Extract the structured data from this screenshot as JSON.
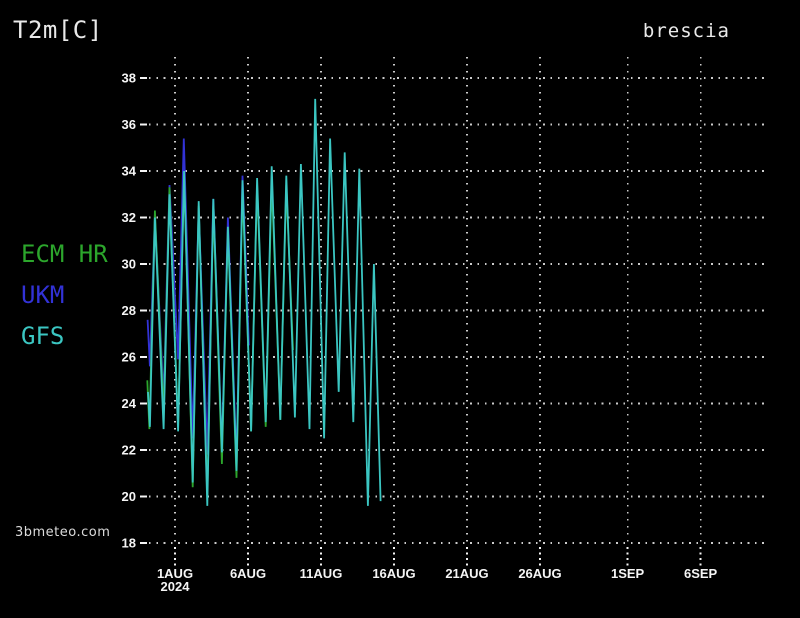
{
  "header": {
    "title": "T2m[C]",
    "station": "brescia"
  },
  "watermark": "3bmeteo.com",
  "colors": {
    "background": "#000000",
    "grid": "#cccccc",
    "axis_text": "#f5f5f5",
    "title_text": "#e9e9e9",
    "ecm_green": "#2ca62c",
    "ukm_blue": "#3232d6",
    "gfs_cyan": "#3bc6c2"
  },
  "legend": [
    {
      "label": "ECM HR",
      "color_key": "ecm_green"
    },
    {
      "label": "UKM",
      "color_key": "ukm_blue"
    },
    {
      "label": "GFS",
      "color_key": "gfs_cyan"
    }
  ],
  "chart_data": {
    "type": "line",
    "title": "T2m[C]",
    "location": "brescia",
    "grid": true,
    "legend_position": "left",
    "ylabel": "T2m [C]",
    "y_axis": {
      "min": 18,
      "max": 38,
      "step": 2,
      "ticks": [
        38,
        36,
        34,
        32,
        30,
        28,
        26,
        24,
        22,
        20,
        18
      ]
    },
    "x_axis": {
      "unit": "days relative to 1AUG tick",
      "ticks": [
        {
          "label": "1AUG",
          "sublabel": "2024",
          "t": 0
        },
        {
          "label": "6AUG",
          "t": 5
        },
        {
          "label": "11AUG",
          "t": 10
        },
        {
          "label": "16AUG",
          "t": 15
        },
        {
          "label": "21AUG",
          "t": 20
        },
        {
          "label": "26AUG",
          "t": 25
        },
        {
          "label": "1SEP",
          "t": 31
        },
        {
          "label": "6SEP",
          "t": 36
        }
      ]
    },
    "series": [
      {
        "name": "ECM HR",
        "color_key": "ecm_green",
        "points": [
          [
            -1.9,
            25.0
          ],
          [
            -1.75,
            22.9
          ],
          [
            -1.38,
            32.3
          ],
          [
            -0.78,
            23.5
          ],
          [
            -0.38,
            33.3
          ],
          [
            0.21,
            23.0
          ],
          [
            0.62,
            33.8
          ],
          [
            1.21,
            20.4
          ],
          [
            1.62,
            32.5
          ],
          [
            2.21,
            20.0
          ],
          [
            2.62,
            32.5
          ],
          [
            3.21,
            21.4
          ],
          [
            3.62,
            31.5
          ],
          [
            4.21,
            20.8
          ],
          [
            4.62,
            33.2
          ],
          [
            5.21,
            22.8
          ],
          [
            5.62,
            33.4
          ],
          [
            6.21,
            23.0
          ],
          [
            6.62,
            33.6
          ],
          [
            7.21,
            23.3
          ],
          [
            7.62,
            33.4
          ],
          [
            8.08,
            26.3
          ]
        ]
      },
      {
        "name": "UKM",
        "color_key": "ukm_blue",
        "points": [
          [
            -1.88,
            27.6
          ],
          [
            -1.72,
            25.6
          ],
          [
            -1.38,
            32.1
          ],
          [
            -0.78,
            24.2
          ],
          [
            -0.38,
            33.4
          ],
          [
            0.21,
            25.9
          ],
          [
            0.6,
            35.4
          ],
          [
            1.21,
            22.5
          ],
          [
            1.62,
            32.4
          ],
          [
            2.21,
            21.8
          ],
          [
            2.62,
            32.8
          ],
          [
            3.21,
            22.0
          ],
          [
            3.62,
            32.0
          ],
          [
            4.21,
            21.5
          ],
          [
            4.62,
            33.8
          ],
          [
            5.06,
            26.5
          ]
        ]
      },
      {
        "name": "GFS",
        "color_key": "gfs_cyan",
        "points": [
          [
            -1.85,
            24.5
          ],
          [
            -1.72,
            23.0
          ],
          [
            -1.38,
            32.0
          ],
          [
            -0.78,
            22.9
          ],
          [
            -0.38,
            33.0
          ],
          [
            0.21,
            22.8
          ],
          [
            0.62,
            34.0
          ],
          [
            1.21,
            20.6
          ],
          [
            1.62,
            32.7
          ],
          [
            2.21,
            19.6
          ],
          [
            2.62,
            32.8
          ],
          [
            3.21,
            21.9
          ],
          [
            3.62,
            31.6
          ],
          [
            4.21,
            21.1
          ],
          [
            4.62,
            33.6
          ],
          [
            5.21,
            22.8
          ],
          [
            5.62,
            33.7
          ],
          [
            6.21,
            23.2
          ],
          [
            6.62,
            34.2
          ],
          [
            7.21,
            23.3
          ],
          [
            7.62,
            33.8
          ],
          [
            8.21,
            23.4
          ],
          [
            8.62,
            34.3
          ],
          [
            9.21,
            22.9
          ],
          [
            9.6,
            37.1
          ],
          [
            10.21,
            22.5
          ],
          [
            10.62,
            35.4
          ],
          [
            11.21,
            24.5
          ],
          [
            11.62,
            34.8
          ],
          [
            12.21,
            23.2
          ],
          [
            12.62,
            34.1
          ],
          [
            13.21,
            19.6
          ],
          [
            13.62,
            30.0
          ],
          [
            14.08,
            19.8
          ]
        ]
      }
    ]
  }
}
